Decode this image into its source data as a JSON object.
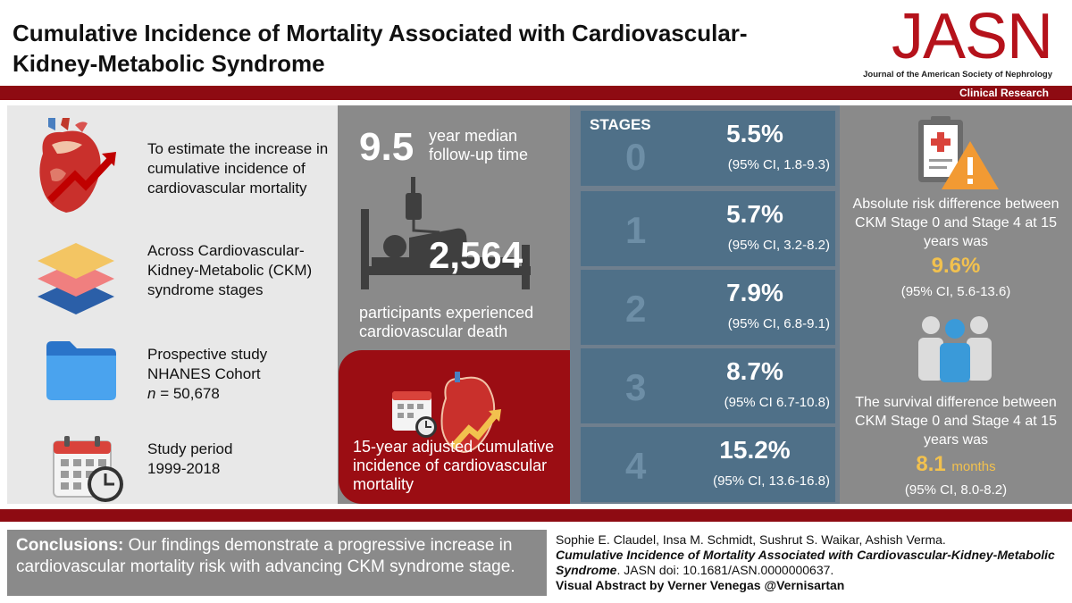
{
  "header": {
    "title": "Cumulative Incidence of Mortality Associated with Cardiovascular-Kidney-Metabolic Syndrome",
    "logo": "JASN",
    "logo_subtitle": "Journal of the American Society of Nephrology",
    "section": "Clinical Research"
  },
  "left": {
    "items": [
      {
        "icon": "heart-rising-arrow-icon",
        "text": "To estimate the increase in cumulative incidence of cardiovascular mortality"
      },
      {
        "icon": "layers-icon",
        "text": "Across Cardiovascular-Kidney-Metabolic (CKM) syndrome stages"
      },
      {
        "icon": "folder-icon",
        "text_line1": "Prospective study",
        "text_line2": "NHANES Cohort",
        "n_label": "n",
        "n_value": " = 50,678"
      },
      {
        "icon": "calendar-clock-icon",
        "text_line1": "Study period",
        "text_line2": "1999-2018"
      }
    ]
  },
  "middle": {
    "followup_value": "9.5",
    "followup_label": "year median follow-up time",
    "participants_value": "2,564",
    "participants_label": "participants experienced cardiovascular death",
    "card_label": "15-year adjusted cumulative incidence of cardiovascular mortality"
  },
  "stages": {
    "label": "STAGES",
    "items": [
      {
        "stage": "0",
        "pct": "5.5%",
        "ci": "(95% CI, 1.8-9.3)"
      },
      {
        "stage": "1",
        "pct": "5.7%",
        "ci": "(95% CI, 3.2-8.2)"
      },
      {
        "stage": "2",
        "pct": "7.9%",
        "ci": "(95% CI, 6.8-9.1)"
      },
      {
        "stage": "3",
        "pct": "8.7%",
        "ci": "(95% CI 6.7-10.8)"
      },
      {
        "stage": "4",
        "pct": "15.2%",
        "ci": "(95% CI, 13.6-16.8)"
      }
    ]
  },
  "right": {
    "risk_text": "Absolute risk difference between CKM Stage 0 and Stage 4 at 15 years was",
    "risk_value": "9.6%",
    "risk_ci": "(95% CI, 5.6-13.6)",
    "survival_text": "The survival difference between CKM Stage 0 and Stage 4 at 15 years was",
    "survival_value": "8.1",
    "survival_unit": "months",
    "survival_ci": "(95% CI, 8.0-8.2)"
  },
  "footer": {
    "conclusion_label": "Conclusions:",
    "conclusion_text": " Our findings demonstrate a progressive increase in cardiovascular mortality risk with advancing CKM syndrome stage.",
    "authors": "Sophie E. Claudel, Insa M. Schmidt, Sushrut S. Waikar, Ashish Verma.",
    "article_title": "Cumulative Incidence of Mortality Associated with Cardiovascular-Kidney-Metabolic Syndrome",
    "doi": ". JASN doi: 10.1681/ASN.0000000637.",
    "credit": "Visual Abstract by Verner Venegas @Vernisartan"
  },
  "colors": {
    "brand_red": "#b5121b",
    "band_red": "#8e0b12",
    "panel_gray": "#8a8a8a",
    "stage_blue": "#4f7088",
    "highlight_yellow": "#f2c14e"
  }
}
